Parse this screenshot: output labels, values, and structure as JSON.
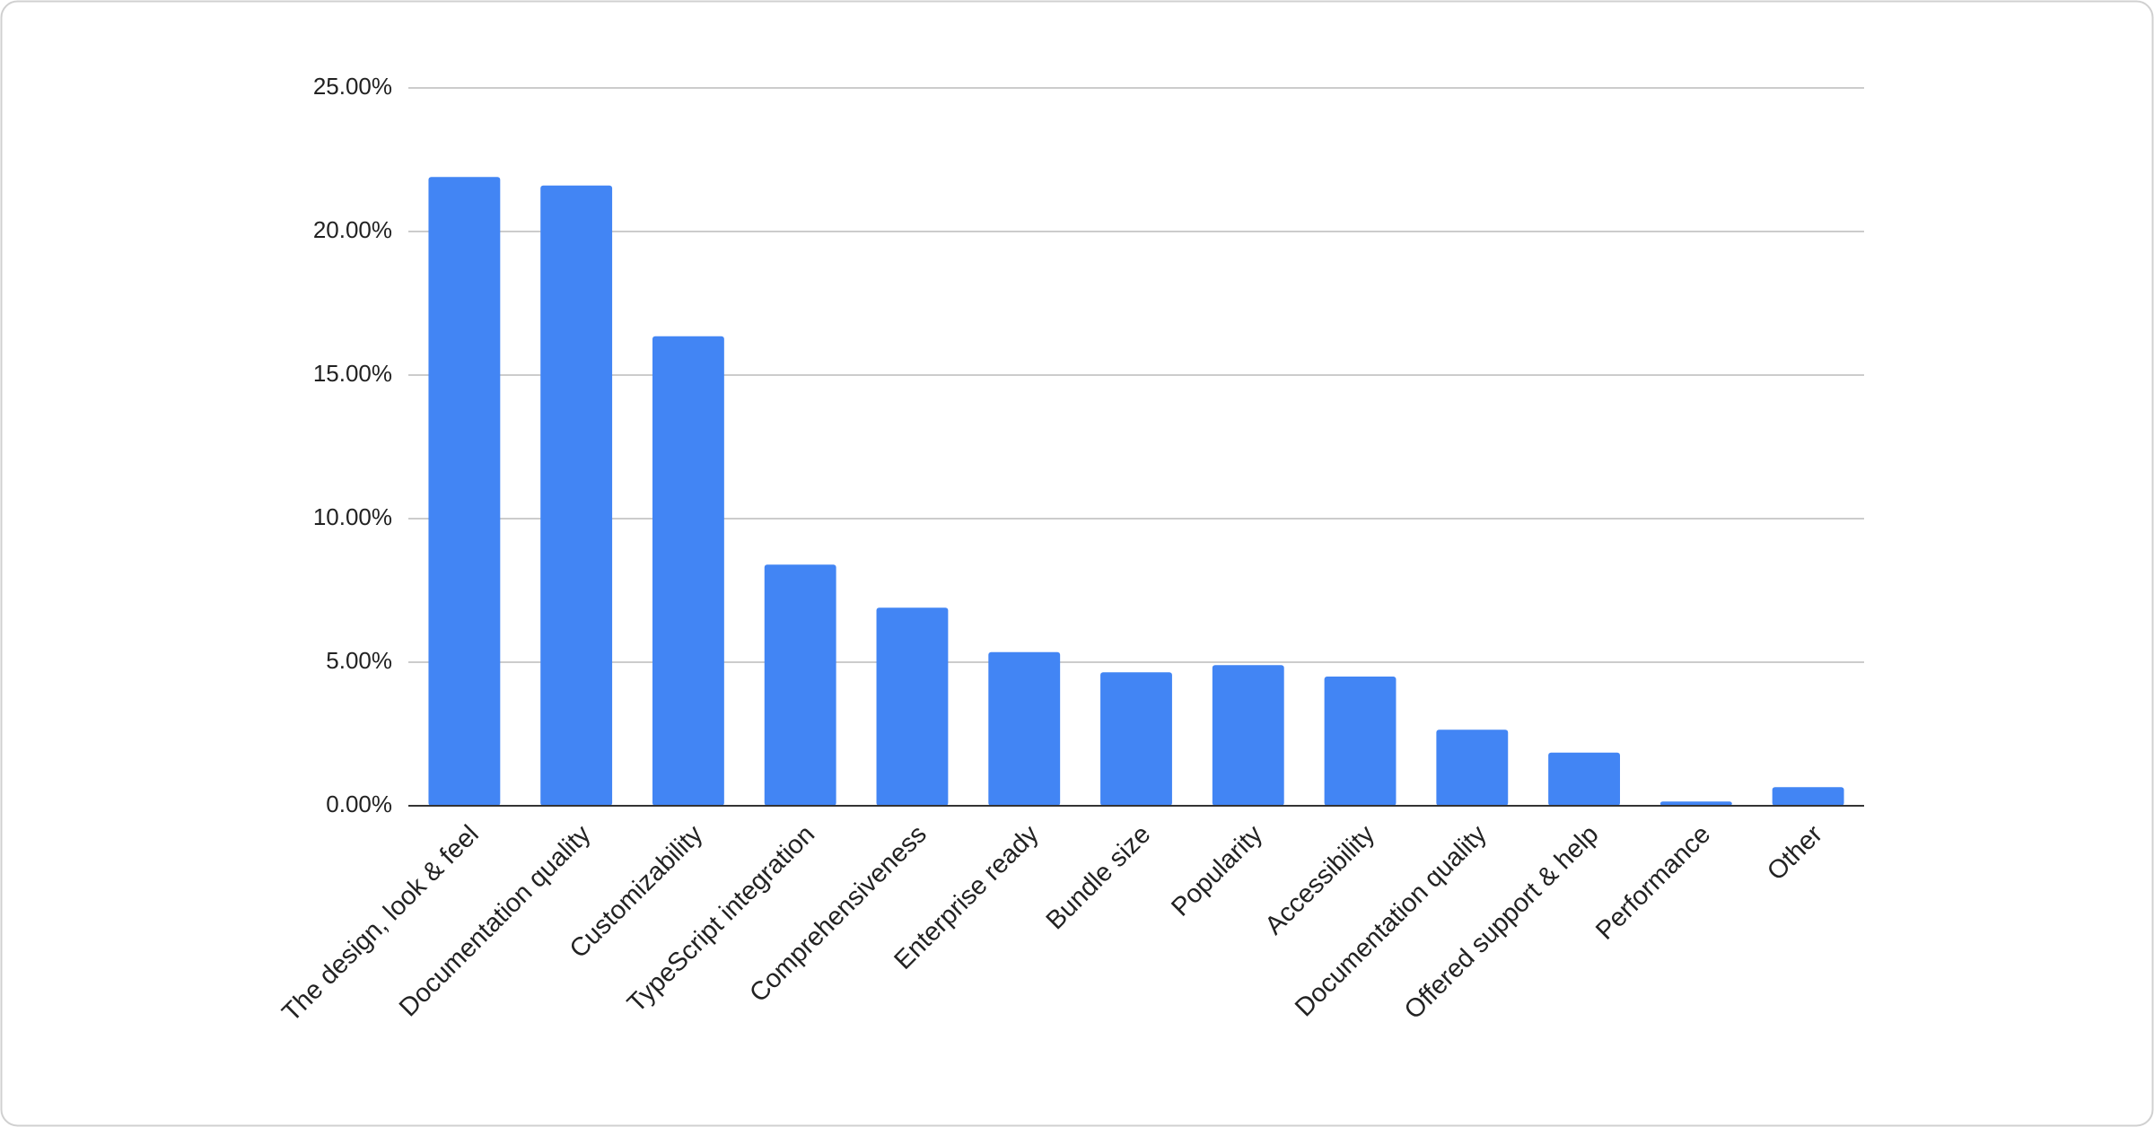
{
  "chart_data": {
    "type": "bar",
    "categories": [
      "The design, look & feel",
      "Documentation quality",
      "Customizability",
      "TypeScript integration",
      "Comprehensiveness",
      "Enterprise ready",
      "Bundle size",
      "Popularity",
      "Accessibility",
      "Documentation quality",
      "Offered support & help",
      "Performance",
      "Other"
    ],
    "values": [
      21.9,
      21.6,
      16.35,
      8.4,
      6.9,
      5.35,
      4.65,
      4.9,
      4.5,
      2.65,
      1.85,
      0.15,
      0.65
    ],
    "color": "#4285f4",
    "ylim": [
      0,
      25
    ],
    "yticks": [
      {
        "value": 0,
        "label": "0.00%"
      },
      {
        "value": 5,
        "label": "5.00%"
      },
      {
        "value": 10,
        "label": "10.00%"
      },
      {
        "value": 15,
        "label": "15.00%"
      },
      {
        "value": 20,
        "label": "20.00%"
      },
      {
        "value": 25,
        "label": "25.00%"
      }
    ],
    "grid": true
  }
}
